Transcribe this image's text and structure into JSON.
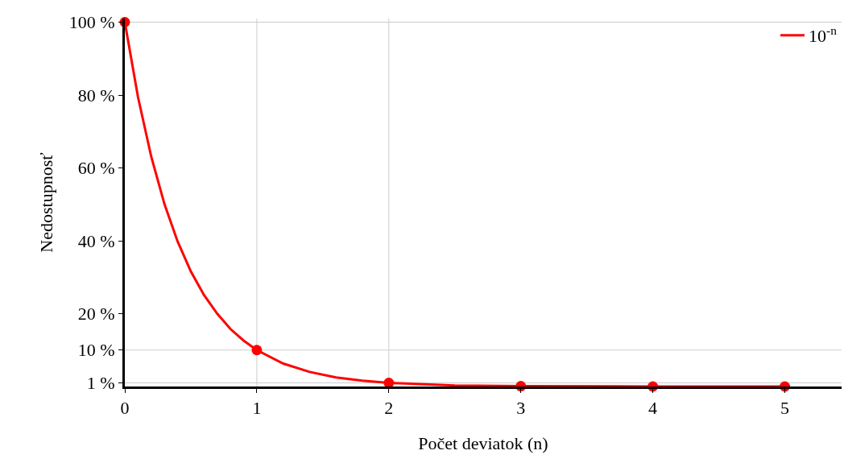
{
  "chart_data": {
    "type": "line",
    "xlabel": "Počet deviatok (n)",
    "ylabel": "Nedostupnosť",
    "series": [
      {
        "name": "10$^{-n}$",
        "color": "#ff0000",
        "marker": "none",
        "x": [
          0,
          0.1,
          0.2,
          0.3,
          0.4,
          0.5,
          0.6,
          0.7,
          0.8,
          0.9,
          1,
          1.2,
          1.4,
          1.6,
          1.8,
          2,
          2.5,
          3,
          4,
          5
        ],
        "values": [
          100,
          79.4,
          63.1,
          50.1,
          39.8,
          31.6,
          25.1,
          20,
          15.8,
          12.6,
          10,
          6.3,
          4,
          2.5,
          1.6,
          1,
          0.3,
          0.1,
          0,
          0
        ]
      },
      {
        "type": "scatter",
        "color": "#ff0000",
        "marker": "circle",
        "x": [
          0,
          1,
          2,
          3,
          4,
          5
        ],
        "values": [
          100,
          10,
          1,
          0.1,
          0,
          0
        ]
      }
    ],
    "xlim": [
      0,
      5.43
    ],
    "xticks": [
      0,
      1,
      2,
      3,
      4,
      5
    ],
    "ylim": [
      0,
      101
    ],
    "yticks": [
      {
        "value": 1,
        "label": "1 %"
      },
      {
        "value": 10,
        "label": "10 %"
      },
      {
        "value": 20,
        "label": "20 %"
      },
      {
        "value": 40,
        "label": "40 %"
      },
      {
        "value": 60,
        "label": "60 %"
      },
      {
        "value": 80,
        "label": "80 %"
      },
      {
        "value": 100,
        "label": "100 %"
      }
    ],
    "grid": false,
    "ref_lines": [
      {
        "axis": "x",
        "value": 1,
        "color": "#cccccc"
      },
      {
        "axis": "x",
        "value": 2,
        "color": "#cccccc"
      },
      {
        "axis": "y",
        "value": 1,
        "color": "#cccccc"
      },
      {
        "axis": "y",
        "value": 10,
        "color": "#cccccc"
      },
      {
        "axis": "y",
        "value": 100,
        "color": "#cccccc"
      }
    ],
    "legend": "top right"
  }
}
